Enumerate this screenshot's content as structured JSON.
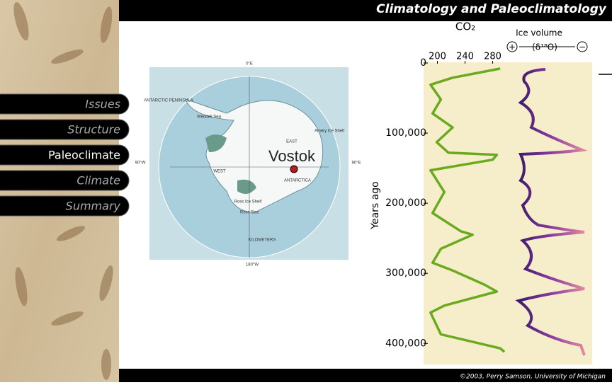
{
  "header": {
    "title": "Climatology and Paleoclimatology"
  },
  "nav": {
    "items": [
      "Issues",
      "Structure",
      "Paleoclimate",
      "Climate",
      "Summary"
    ],
    "active": 2
  },
  "map": {
    "labels": [
      "0°E",
      "90°W",
      "90°E",
      "180°W",
      "Vostok",
      "EAST",
      "WEST",
      "ANTARCTICA",
      "Weddell Sea",
      "Ross Sea",
      "KILOMETERS",
      "ANTARCTIC PENINSULA",
      "Amery Ice Shelf",
      "Ross Ice Shelf"
    ]
  },
  "chart_data": {
    "type": "line",
    "y_label": "Years ago",
    "x": [
      8000,
      21000,
      31000,
      52000,
      72000,
      92000,
      113000,
      128000,
      131000,
      138000,
      153000,
      184000,
      214000,
      240000,
      245000,
      265000,
      285000,
      296000,
      316000,
      326000,
      346000,
      356000,
      387000,
      407000,
      412000
    ],
    "series": [
      {
        "name": "CO₂",
        "color": "#6aaa1e",
        "values": [
          291,
          222,
          190,
          205,
          193,
          222,
          199,
          216,
          286,
          280,
          190,
          210,
          193,
          234,
          251,
          205,
          193,
          222,
          268,
          286,
          210,
          190,
          205,
          291,
          297
        ]
      }
    ],
    "xlim": [
      180,
      300
    ],
    "xticks": [
      200,
      240,
      280
    ],
    "ylim": [
      0,
      430000
    ],
    "yticks": [
      0,
      {
        "value": 100000,
        "label": "100,000"
      },
      {
        "value": 200000,
        "label": "200,000"
      },
      {
        "value": 300000,
        "label": "300,000"
      },
      {
        "value": 400000,
        "label": "400,000"
      }
    ],
    "annotations": [
      "Ice volume",
      "(δ¹⁸O)",
      "+",
      "−"
    ]
  },
  "footer": {
    "credit": "©2003, Perry Samson, University of Michigan"
  }
}
